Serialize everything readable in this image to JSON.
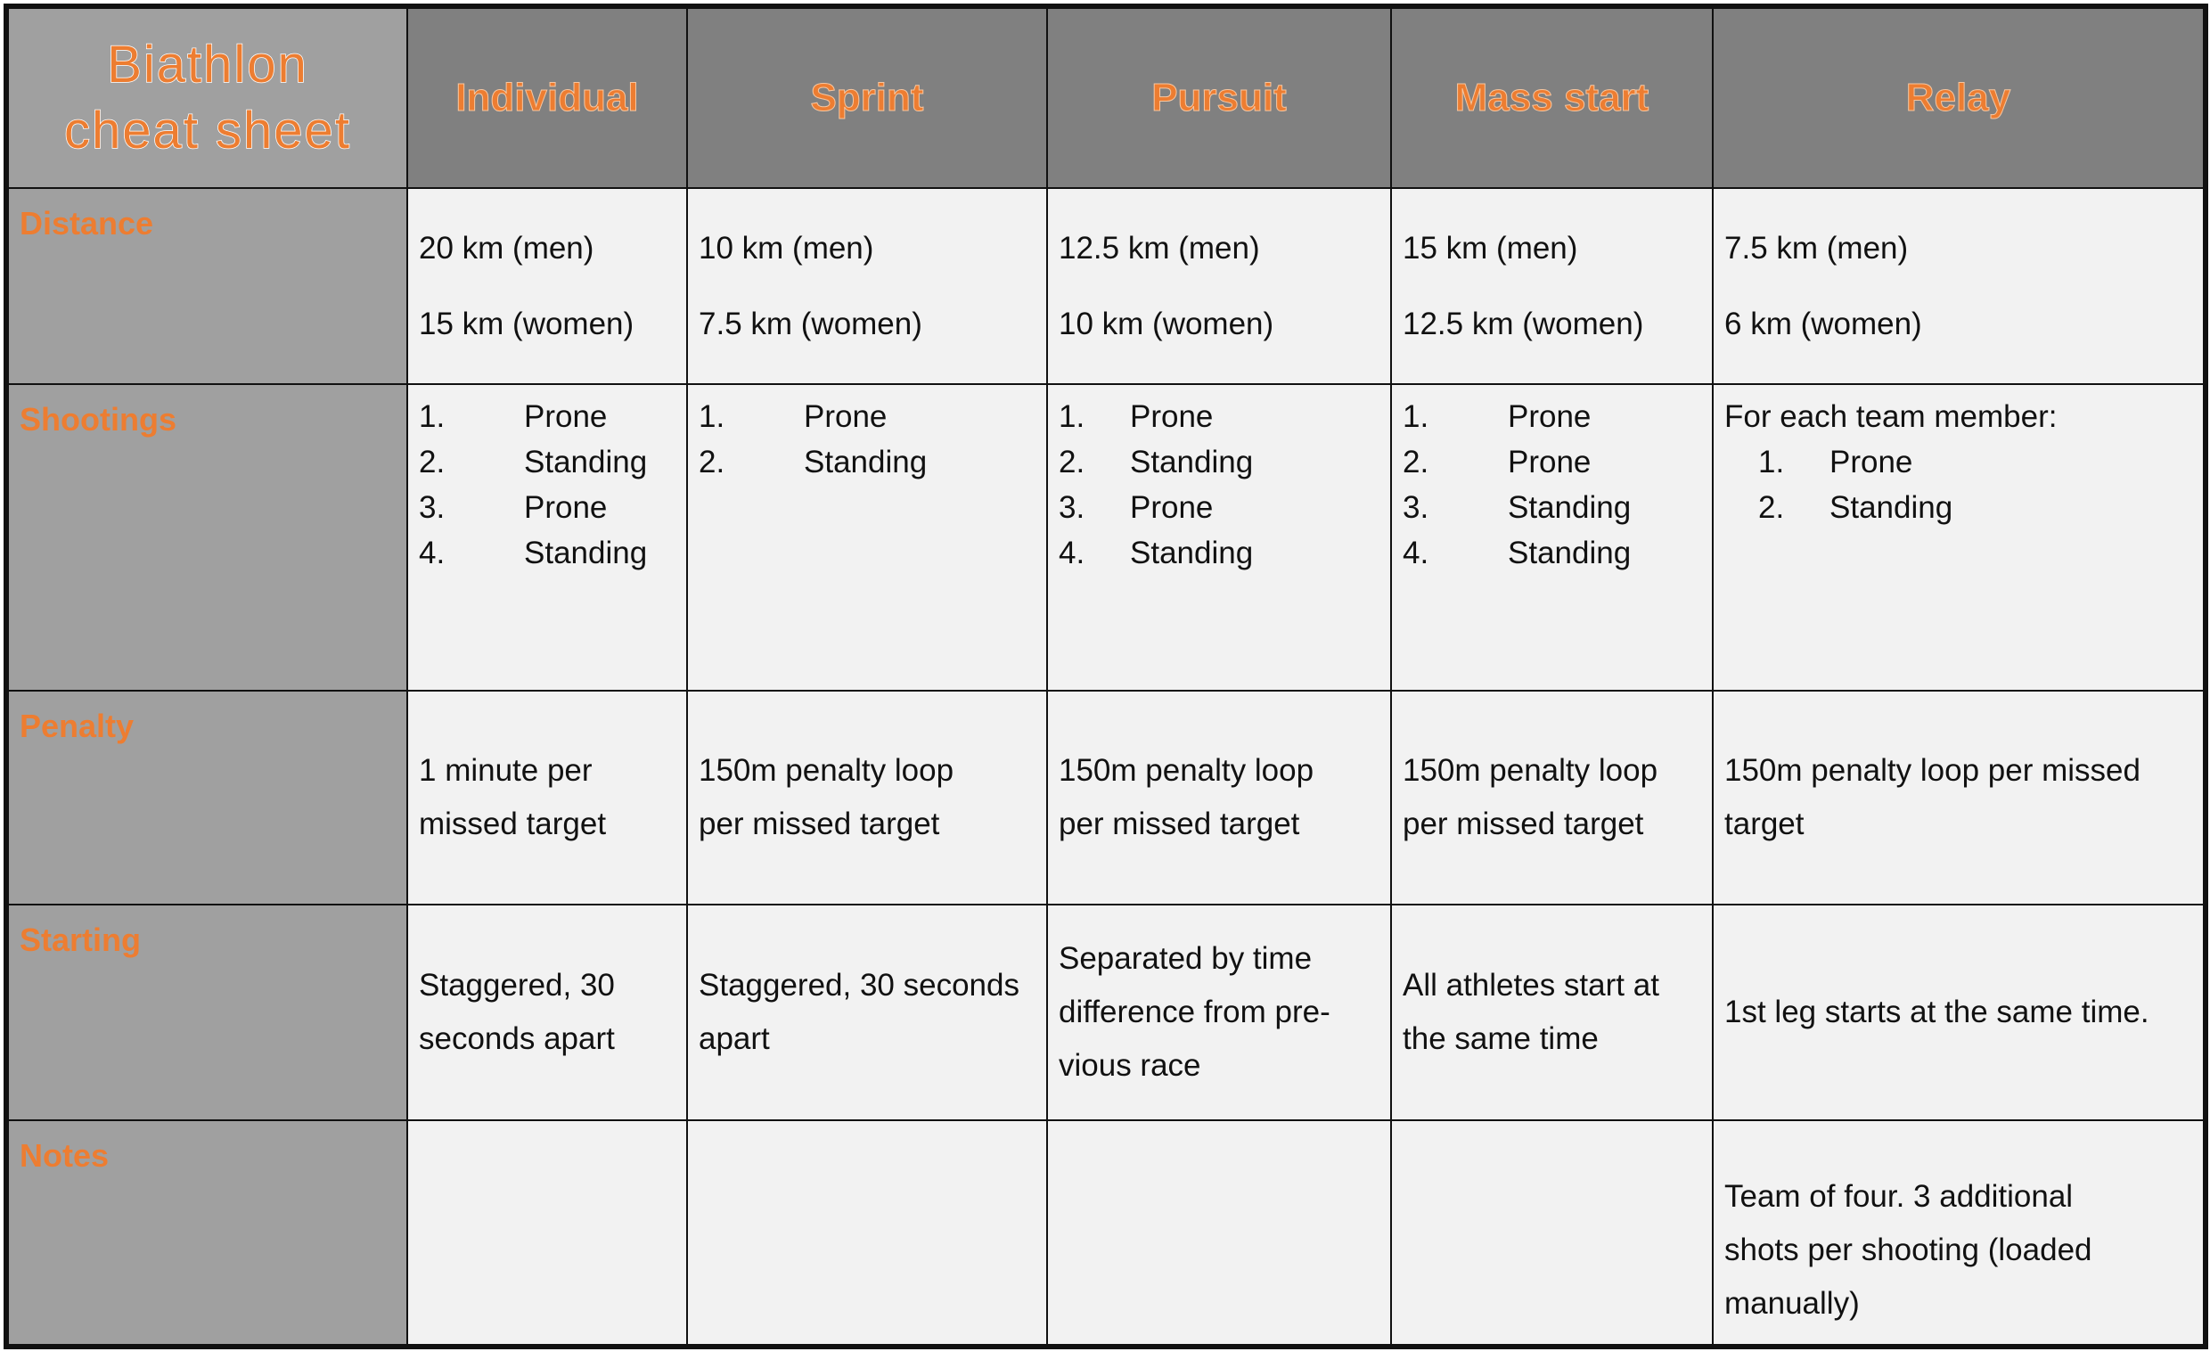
{
  "title": [
    "Biathlon",
    "cheat sheet"
  ],
  "columns": [
    "Individual",
    "Sprint",
    "Pursuit",
    "Mass start",
    "Relay"
  ],
  "rows": {
    "distance": {
      "label": "Distance",
      "cells": [
        [
          "20 km (men)",
          "15 km (women)"
        ],
        [
          "10 km (men)",
          "7.5 km (women)"
        ],
        [
          "12.5 km (men)",
          "10 km (women)"
        ],
        [
          "15 km (men)",
          "12.5 km (women)"
        ],
        [
          "7.5 km (men)",
          "6 km (women)"
        ]
      ]
    },
    "shootings": {
      "label": "Shootings",
      "relay_intro": "For each team member:",
      "cells": [
        [
          "Prone",
          "Standing",
          "Prone",
          "Standing"
        ],
        [
          "Prone",
          "Standing"
        ],
        [
          "Prone",
          "Standing",
          "Prone",
          "Standing"
        ],
        [
          "Prone",
          "Prone",
          "Standing",
          "Standing"
        ],
        [
          "Prone",
          "Standing"
        ]
      ]
    },
    "penalty": {
      "label": "Penalty",
      "cells": [
        [
          "1 minute per",
          "missed target"
        ],
        [
          "150m penalty loop",
          "per missed target"
        ],
        [
          "150m penalty loop",
          "per missed target"
        ],
        [
          "150m penalty loop",
          "per missed target"
        ],
        [
          "150m penalty loop per missed",
          "target"
        ]
      ]
    },
    "starting": {
      "label": "Starting",
      "cells": [
        [
          "Staggered, 30",
          "seconds apart"
        ],
        [
          "Staggered, 30 seconds",
          "apart"
        ],
        [
          "Separated by time",
          "difference from pre-",
          "vious race"
        ],
        [
          "All athletes start at",
          "the same time"
        ],
        [
          "1st leg starts at the same time."
        ]
      ]
    },
    "notes": {
      "label": "Notes",
      "cells": [
        [],
        [],
        [],
        [],
        [
          "Team of four. 3 additional",
          "shots per shooting (loaded",
          "manually)"
        ]
      ]
    }
  }
}
